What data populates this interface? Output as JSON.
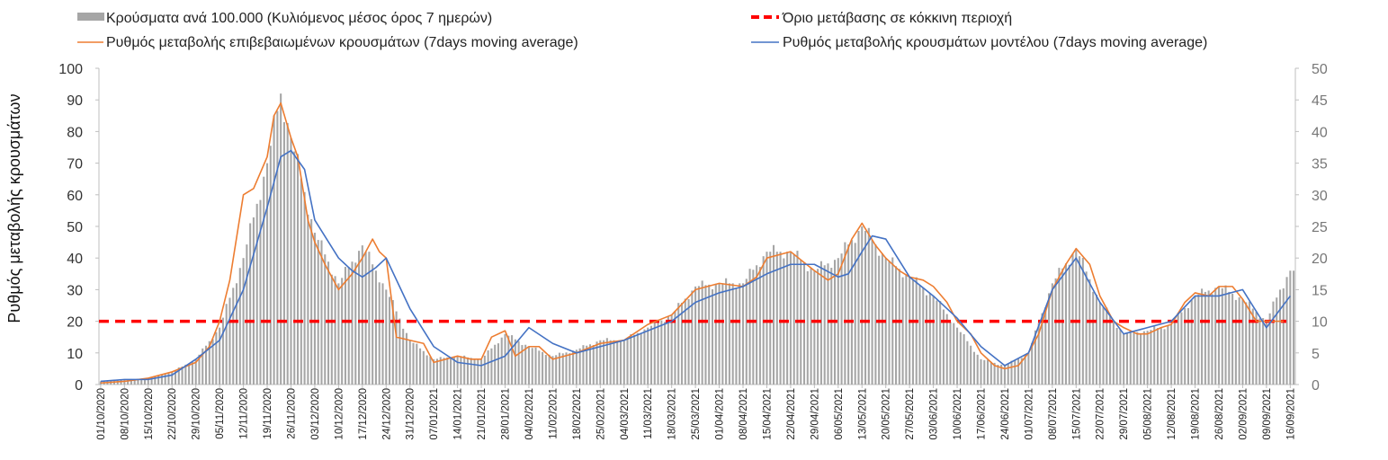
{
  "chart_data": {
    "type": "bar",
    "legend": {
      "placement": "top",
      "items": [
        {
          "label": "Κρούσματα ανά 100.000 (Κυλιόμενος μέσος όρος 7 ημερών)",
          "kind": "bar",
          "color": "#a6a6a6"
        },
        {
          "label": "Όριο μετάβασης σε κόκκινη περιοχή",
          "kind": "dashed-line",
          "color": "#ff0000"
        },
        {
          "label": "Ρυθμός μεταβολής επιβεβαιωμένων κρουσμάτων (7days moving average)",
          "kind": "line",
          "color": "#ed7d31"
        },
        {
          "label": "Ρυθμός μεταβολής κρουσμάτων μοντέλου (7days moving average)",
          "kind": "line",
          "color": "#4472c4"
        }
      ]
    },
    "ylabel": "Ρυθμός μεταβολής κρουσμάτων",
    "ylim_left": [
      0,
      100
    ],
    "ylim_right": [
      0,
      50
    ],
    "left_ticks": [
      "0",
      "10",
      "20",
      "30",
      "40",
      "50",
      "60",
      "70",
      "80",
      "90",
      "100"
    ],
    "right_ticks": [
      "0",
      "5",
      "10",
      "15",
      "20",
      "25",
      "30",
      "35",
      "40",
      "45",
      "50"
    ],
    "x_tick_labels": [
      "01/10/2020",
      "08/10/2020",
      "15/10/2020",
      "22/10/2020",
      "29/10/2020",
      "05/11/2020",
      "12/11/2020",
      "19/11/2020",
      "26/11/2020",
      "03/12/2020",
      "10/12/2020",
      "17/12/2020",
      "24/12/2020",
      "31/12/2020",
      "07/01/2021",
      "14/01/2021",
      "21/01/2021",
      "28/01/2021",
      "04/02/2021",
      "11/02/2021",
      "18/02/2021",
      "25/02/2021",
      "04/03/2021",
      "11/03/2021",
      "18/03/2021",
      "25/03/2021",
      "01/04/2021",
      "08/04/2021",
      "15/04/2021",
      "22/04/2021",
      "29/04/2021",
      "06/05/2021",
      "13/05/2021",
      "20/05/2021",
      "27/05/2021",
      "03/06/2021",
      "10/06/2021",
      "17/06/2021",
      "24/06/2021",
      "01/07/2021",
      "08/07/2021",
      "15/07/2021",
      "22/07/2021",
      "29/07/2021",
      "05/08/2021",
      "12/08/2021",
      "19/08/2021",
      "26/08/2021",
      "02/09/2021",
      "09/09/2021",
      "16/09/2021"
    ],
    "x_start": "01/10/2020",
    "x_end": "17/09/2021",
    "threshold": {
      "value": 20,
      "axis": "left",
      "color": "#ff0000"
    },
    "series": [
      {
        "name": "Κρούσματα ανά 100.000 (Κυλιόμενος μέσος όρος 7 ημερών)",
        "type": "bar",
        "axis": "left",
        "color": "#a6a6a6",
        "x": [
          "01/10/2020",
          "08/10/2020",
          "15/10/2020",
          "22/10/2020",
          "29/10/2020",
          "05/11/2020",
          "12/11/2020",
          "19/11/2020",
          "23/11/2020",
          "26/11/2020",
          "03/12/2020",
          "10/12/2020",
          "17/12/2020",
          "24/12/2020",
          "31/12/2020",
          "07/01/2021",
          "14/01/2021",
          "21/01/2021",
          "28/01/2021",
          "04/02/2021",
          "11/02/2021",
          "18/02/2021",
          "25/02/2021",
          "04/03/2021",
          "11/03/2021",
          "18/03/2021",
          "25/03/2021",
          "01/04/2021",
          "08/04/2021",
          "15/04/2021",
          "22/04/2021",
          "29/04/2021",
          "06/05/2021",
          "13/05/2021",
          "20/05/2021",
          "27/05/2021",
          "03/06/2021",
          "10/06/2021",
          "17/06/2021",
          "24/06/2021",
          "01/07/2021",
          "08/07/2021",
          "15/07/2021",
          "22/07/2021",
          "29/07/2021",
          "05/08/2021",
          "12/08/2021",
          "19/08/2021",
          "26/08/2021",
          "02/09/2021",
          "09/09/2021",
          "13/09/2021",
          "16/09/2021"
        ],
        "y": [
          1,
          1.5,
          2,
          4,
          8,
          18,
          40,
          70,
          92,
          78,
          48,
          32,
          44,
          30,
          14,
          8,
          9,
          8,
          16,
          12,
          9,
          11,
          14,
          14,
          18,
          22,
          31,
          32,
          32,
          42,
          42,
          36,
          40,
          50,
          40,
          34,
          28,
          18,
          8,
          6,
          10,
          32,
          43,
          26,
          16,
          17,
          19,
          28,
          31,
          27,
          20,
          30,
          36
        ]
      },
      {
        "name": "Ρυθμός μεταβολής επιβεβαιωμένων κρουσμάτων (7days moving average)",
        "type": "line",
        "axis": "left",
        "color": "#ed7d31",
        "x": [
          "01/10/2020",
          "08/10/2020",
          "15/10/2020",
          "22/10/2020",
          "29/10/2020",
          "02/11/2020",
          "05/11/2020",
          "08/11/2020",
          "12/11/2020",
          "15/11/2020",
          "19/11/2020",
          "21/11/2020",
          "23/11/2020",
          "26/11/2020",
          "28/11/2020",
          "01/12/2020",
          "03/12/2020",
          "06/12/2020",
          "10/12/2020",
          "14/12/2020",
          "17/12/2020",
          "20/12/2020",
          "22/12/2020",
          "24/12/2020",
          "27/12/2020",
          "31/12/2020",
          "04/01/2021",
          "07/01/2021",
          "14/01/2021",
          "18/01/2021",
          "21/01/2021",
          "24/01/2021",
          "28/01/2021",
          "31/01/2021",
          "04/02/2021",
          "07/02/2021",
          "11/02/2021",
          "18/02/2021",
          "25/02/2021",
          "04/03/2021",
          "11/03/2021",
          "18/03/2021",
          "25/03/2021",
          "01/04/2021",
          "08/04/2021",
          "12/04/2021",
          "15/04/2021",
          "22/04/2021",
          "29/04/2021",
          "03/05/2021",
          "06/05/2021",
          "10/05/2021",
          "13/05/2021",
          "17/05/2021",
          "20/05/2021",
          "24/05/2021",
          "27/05/2021",
          "31/05/2021",
          "03/06/2021",
          "07/06/2021",
          "10/06/2021",
          "14/06/2021",
          "17/06/2021",
          "21/06/2021",
          "24/06/2021",
          "28/06/2021",
          "01/07/2021",
          "04/07/2021",
          "08/07/2021",
          "12/07/2021",
          "15/07/2021",
          "19/07/2021",
          "22/07/2021",
          "26/07/2021",
          "29/07/2021",
          "02/08/2021",
          "05/08/2021",
          "09/08/2021",
          "12/08/2021",
          "16/08/2021",
          "19/08/2021",
          "23/08/2021",
          "26/08/2021",
          "30/08/2021",
          "02/09/2021",
          "06/09/2021",
          "09/09/2021",
          "12/09/2021",
          "14/09/2021"
        ],
        "y": [
          0.5,
          1,
          2,
          4,
          7,
          12,
          20,
          33,
          60,
          62,
          72,
          85,
          89,
          78,
          72,
          52,
          45,
          38,
          30,
          35,
          40,
          46,
          42,
          40,
          15,
          14,
          13,
          7,
          9,
          8,
          8,
          15,
          17,
          9,
          12,
          12,
          8,
          10,
          13,
          14,
          19,
          22,
          30,
          32,
          31,
          34,
          40,
          42,
          36,
          33,
          35,
          46,
          51,
          44,
          40,
          36,
          34,
          33,
          31,
          26,
          20,
          16,
          10,
          6,
          5,
          6,
          10,
          16,
          30,
          38,
          43,
          38,
          28,
          20,
          18,
          16,
          16,
          18,
          19,
          26,
          29,
          28,
          31,
          31,
          27,
          20,
          20,
          20,
          20
        ]
      },
      {
        "name": "Ρυθμός μεταβολής κρουσμάτων μοντέλου (7days moving average)",
        "type": "line",
        "axis": "right",
        "color": "#4472c4",
        "x": [
          "01/10/2020",
          "08/10/2020",
          "15/10/2020",
          "22/10/2020",
          "29/10/2020",
          "05/11/2020",
          "12/11/2020",
          "19/11/2020",
          "23/11/2020",
          "26/11/2020",
          "30/11/2020",
          "03/12/2020",
          "10/12/2020",
          "14/12/2020",
          "17/12/2020",
          "21/12/2020",
          "24/12/2020",
          "31/12/2020",
          "07/01/2021",
          "14/01/2021",
          "21/01/2021",
          "28/01/2021",
          "04/02/2021",
          "11/02/2021",
          "18/02/2021",
          "25/02/2021",
          "04/03/2021",
          "11/03/2021",
          "18/03/2021",
          "25/03/2021",
          "01/04/2021",
          "08/04/2021",
          "15/04/2021",
          "22/04/2021",
          "29/04/2021",
          "06/05/2021",
          "09/05/2021",
          "13/05/2021",
          "16/05/2021",
          "20/05/2021",
          "27/05/2021",
          "03/06/2021",
          "10/06/2021",
          "17/06/2021",
          "24/06/2021",
          "01/07/2021",
          "08/07/2021",
          "15/07/2021",
          "22/07/2021",
          "29/07/2021",
          "05/08/2021",
          "12/08/2021",
          "19/08/2021",
          "26/08/2021",
          "02/09/2021",
          "09/09/2021",
          "16/09/2021"
        ],
        "y": [
          0.5,
          0.8,
          0.8,
          1.5,
          4,
          7,
          15,
          28,
          36,
          37,
          34,
          26,
          20,
          18,
          17,
          18.5,
          20,
          12,
          6,
          3.5,
          3,
          4.5,
          9,
          6.5,
          5,
          6,
          7,
          8.5,
          10,
          13,
          14.5,
          15.5,
          17.5,
          19,
          19,
          17,
          17.5,
          21,
          23.5,
          23,
          17,
          14,
          10.5,
          6,
          3,
          5,
          15,
          20,
          13,
          8,
          9,
          10,
          14,
          14,
          15,
          9,
          14
        ]
      }
    ]
  }
}
